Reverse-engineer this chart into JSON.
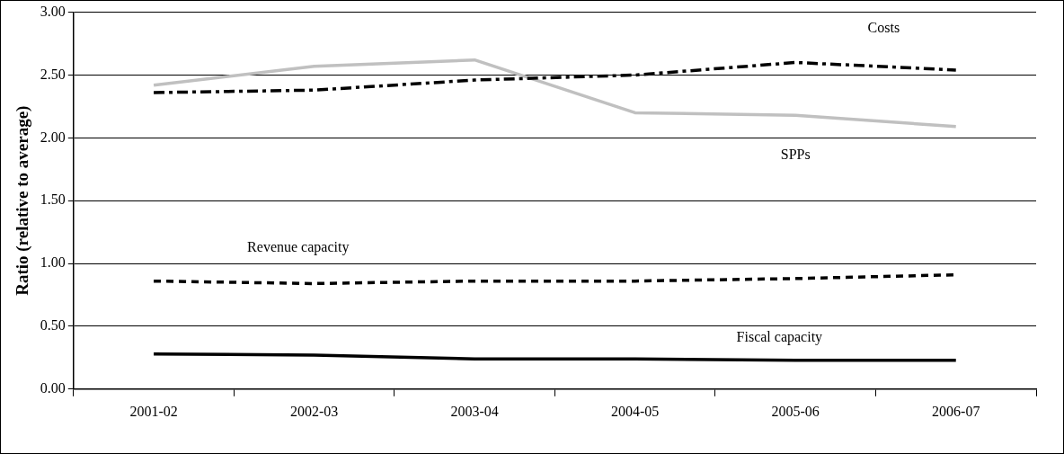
{
  "chart_data": {
    "type": "line",
    "ylabel": "Ratio (relative to average)",
    "categories": [
      "2001-02",
      "2002-03",
      "2003-04",
      "2004-05",
      "2005-06",
      "2006-07"
    ],
    "series": [
      {
        "name": "Costs",
        "color": "#000000",
        "line_style": "dashed",
        "values": [
          2.36,
          2.38,
          2.46,
          2.5,
          2.6,
          2.54
        ]
      },
      {
        "name": "SPPs",
        "color": "#c0c0c0",
        "line_style": "solid",
        "values": [
          2.42,
          2.57,
          2.62,
          2.2,
          2.18,
          2.09
        ]
      },
      {
        "name": "Revenue capacity",
        "color": "#000000",
        "line_style": "dotted",
        "values": [
          0.86,
          0.84,
          0.86,
          0.86,
          0.88,
          0.91
        ]
      },
      {
        "name": "Fiscal capacity",
        "color": "#000000",
        "line_style": "solid",
        "values": [
          0.28,
          0.27,
          0.24,
          0.24,
          0.23,
          0.23
        ]
      }
    ],
    "ylim": [
      0,
      3
    ],
    "yticks": [
      {
        "value": 0,
        "label": "0.00"
      },
      {
        "value": 0.5,
        "label": "0.50"
      },
      {
        "value": 1,
        "label": "1.00"
      },
      {
        "value": 1.5,
        "label": "1.50"
      },
      {
        "value": 2,
        "label": "2.00"
      },
      {
        "value": 2.5,
        "label": "2.50"
      },
      {
        "value": 3,
        "label": "3.00"
      }
    ],
    "grid": "y",
    "legend": false,
    "marker": "none"
  }
}
